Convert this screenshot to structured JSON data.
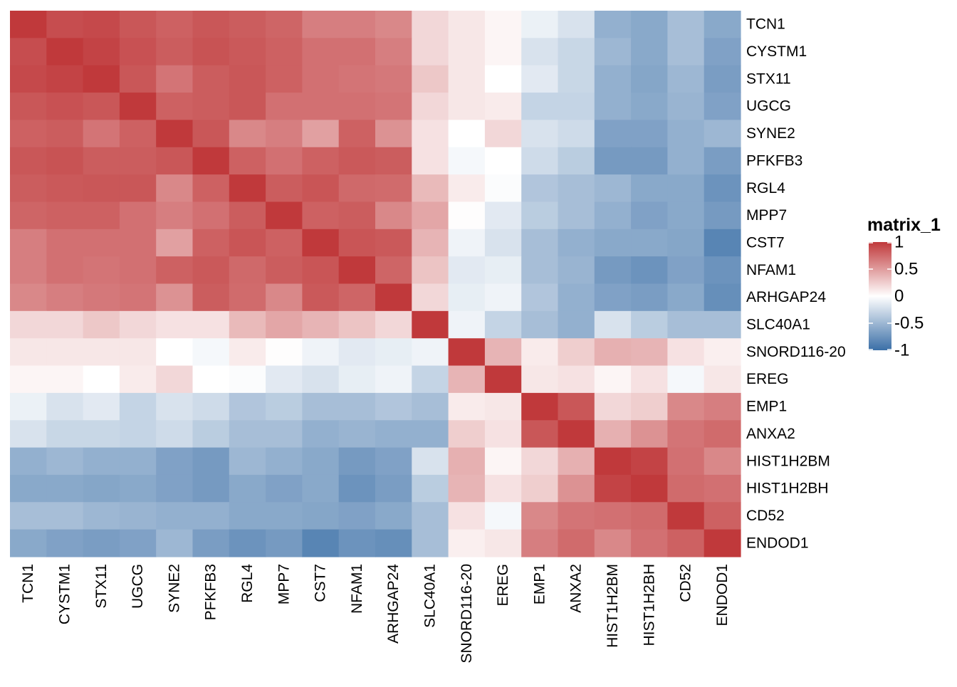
{
  "chart_data": {
    "type": "heatmap",
    "title": "",
    "xlabel": "",
    "ylabel": "",
    "rows": [
      "TCN1",
      "CYSTM1",
      "STX11",
      "UGCG",
      "SYNE2",
      "PFKFB3",
      "RGL4",
      "MPP7",
      "CST7",
      "NFAM1",
      "ARHGAP24",
      "SLC40A1",
      "SNORD116-20",
      "EREG",
      "EMP1",
      "ANXA2",
      "HIST1H2BM",
      "HIST1H2BH",
      "CD52",
      "ENDOD1"
    ],
    "columns": [
      "TCN1",
      "CYSTM1",
      "STX11",
      "UGCG",
      "SYNE2",
      "PFKFB3",
      "RGL4",
      "MPP7",
      "CST7",
      "NFAM1",
      "ARHGAP24",
      "SLC40A1",
      "SNORD116-20",
      "EREG",
      "EMP1",
      "ANXA2",
      "HIST1H2BM",
      "HIST1H2BH",
      "CD52",
      "ENDOD1"
    ],
    "values": [
      [
        1.0,
        0.9,
        0.92,
        0.85,
        0.8,
        0.85,
        0.82,
        0.78,
        0.65,
        0.65,
        0.6,
        0.2,
        0.12,
        0.05,
        -0.1,
        -0.2,
        -0.55,
        -0.6,
        -0.45,
        -0.6
      ],
      [
        0.9,
        1.0,
        0.95,
        0.88,
        0.82,
        0.87,
        0.84,
        0.8,
        0.72,
        0.72,
        0.65,
        0.2,
        0.12,
        0.05,
        -0.2,
        -0.28,
        -0.5,
        -0.6,
        -0.45,
        -0.65
      ],
      [
        0.92,
        0.95,
        1.0,
        0.85,
        0.7,
        0.82,
        0.85,
        0.8,
        0.72,
        0.7,
        0.68,
        0.28,
        0.12,
        0.0,
        -0.15,
        -0.28,
        -0.55,
        -0.62,
        -0.5,
        -0.68
      ],
      [
        0.85,
        0.88,
        0.85,
        1.0,
        0.8,
        0.82,
        0.85,
        0.72,
        0.72,
        0.72,
        0.7,
        0.2,
        0.12,
        0.1,
        -0.3,
        -0.3,
        -0.55,
        -0.6,
        -0.52,
        -0.65
      ],
      [
        0.8,
        0.82,
        0.7,
        0.8,
        1.0,
        0.85,
        0.6,
        0.65,
        0.48,
        0.8,
        0.55,
        0.15,
        0.0,
        0.2,
        -0.2,
        -0.25,
        -0.65,
        -0.65,
        -0.55,
        -0.5
      ],
      [
        0.85,
        0.87,
        0.82,
        0.82,
        0.85,
        1.0,
        0.8,
        0.72,
        0.8,
        0.84,
        0.82,
        0.15,
        -0.05,
        0.0,
        -0.25,
        -0.35,
        -0.7,
        -0.7,
        -0.55,
        -0.68
      ],
      [
        0.82,
        0.84,
        0.85,
        0.85,
        0.6,
        0.8,
        1.0,
        0.82,
        0.86,
        0.76,
        0.75,
        0.35,
        0.1,
        -0.02,
        -0.4,
        -0.45,
        -0.5,
        -0.6,
        -0.6,
        -0.75
      ],
      [
        0.78,
        0.8,
        0.8,
        0.72,
        0.65,
        0.72,
        0.82,
        1.0,
        0.8,
        0.82,
        0.6,
        0.45,
        0.01,
        -0.15,
        -0.35,
        -0.45,
        -0.55,
        -0.65,
        -0.6,
        -0.7
      ],
      [
        0.65,
        0.72,
        0.72,
        0.72,
        0.48,
        0.8,
        0.86,
        0.8,
        1.0,
        0.86,
        0.84,
        0.38,
        -0.08,
        -0.2,
        -0.45,
        -0.55,
        -0.6,
        -0.6,
        -0.62,
        -0.85
      ],
      [
        0.65,
        0.72,
        0.7,
        0.72,
        0.8,
        0.84,
        0.76,
        0.82,
        0.86,
        1.0,
        0.78,
        0.3,
        -0.15,
        -0.12,
        -0.45,
        -0.52,
        -0.7,
        -0.75,
        -0.65,
        -0.75
      ],
      [
        0.6,
        0.65,
        0.68,
        0.7,
        0.55,
        0.82,
        0.75,
        0.6,
        0.84,
        0.78,
        1.0,
        0.2,
        -0.12,
        -0.08,
        -0.4,
        -0.55,
        -0.65,
        -0.68,
        -0.6,
        -0.78
      ],
      [
        0.2,
        0.2,
        0.28,
        0.2,
        0.15,
        0.15,
        0.35,
        0.45,
        0.38,
        0.3,
        0.2,
        1.0,
        -0.08,
        -0.3,
        -0.45,
        -0.55,
        -0.2,
        -0.35,
        -0.45,
        -0.45
      ],
      [
        0.12,
        0.12,
        0.12,
        0.12,
        0.0,
        -0.05,
        0.1,
        0.01,
        -0.08,
        -0.15,
        -0.12,
        -0.08,
        1.0,
        0.38,
        0.1,
        0.25,
        0.4,
        0.38,
        0.15,
        0.08
      ],
      [
        0.05,
        0.05,
        0.0,
        0.1,
        0.2,
        0.0,
        -0.02,
        -0.15,
        -0.2,
        -0.12,
        -0.08,
        -0.3,
        0.38,
        1.0,
        0.12,
        0.15,
        0.05,
        0.15,
        -0.05,
        0.12
      ],
      [
        -0.1,
        -0.2,
        -0.15,
        -0.3,
        -0.2,
        -0.25,
        -0.4,
        -0.35,
        -0.45,
        -0.45,
        -0.4,
        -0.45,
        0.1,
        0.12,
        1.0,
        0.85,
        0.2,
        0.25,
        0.6,
        0.65
      ],
      [
        -0.2,
        -0.28,
        -0.28,
        -0.3,
        -0.25,
        -0.35,
        -0.45,
        -0.45,
        -0.55,
        -0.52,
        -0.55,
        -0.55,
        0.25,
        0.15,
        0.85,
        1.0,
        0.4,
        0.55,
        0.7,
        0.75
      ],
      [
        -0.55,
        -0.5,
        -0.55,
        -0.55,
        -0.65,
        -0.7,
        -0.5,
        -0.55,
        -0.6,
        -0.7,
        -0.65,
        -0.2,
        0.4,
        0.05,
        0.2,
        0.4,
        1.0,
        0.95,
        0.72,
        0.6
      ],
      [
        -0.6,
        -0.6,
        -0.62,
        -0.6,
        -0.65,
        -0.7,
        -0.6,
        -0.65,
        -0.6,
        -0.75,
        -0.68,
        -0.35,
        0.38,
        0.15,
        0.25,
        0.55,
        0.95,
        1.0,
        0.75,
        0.72
      ],
      [
        -0.45,
        -0.45,
        -0.5,
        -0.52,
        -0.55,
        -0.55,
        -0.6,
        -0.6,
        -0.62,
        -0.65,
        -0.6,
        -0.45,
        0.15,
        -0.05,
        0.6,
        0.7,
        0.72,
        0.75,
        1.0,
        0.8
      ],
      [
        -0.6,
        -0.65,
        -0.68,
        -0.65,
        -0.5,
        -0.68,
        -0.75,
        -0.7,
        -0.85,
        -0.75,
        -0.78,
        -0.45,
        0.08,
        0.12,
        0.65,
        0.75,
        0.6,
        0.72,
        0.8,
        1.0
      ]
    ],
    "color_scale": {
      "min": -1,
      "mid": 0,
      "max": 1,
      "low_color": "#3b6fa7",
      "mid_color": "#ffffff",
      "high_color": "#c0393b"
    },
    "legend": {
      "title": "matrix_1",
      "placement": "right",
      "ticks": [
        1,
        0.5,
        0,
        -0.5,
        -1
      ],
      "tick_labels": [
        "1",
        "0.5",
        "0",
        "-0.5",
        "-1"
      ]
    },
    "grid": false
  }
}
